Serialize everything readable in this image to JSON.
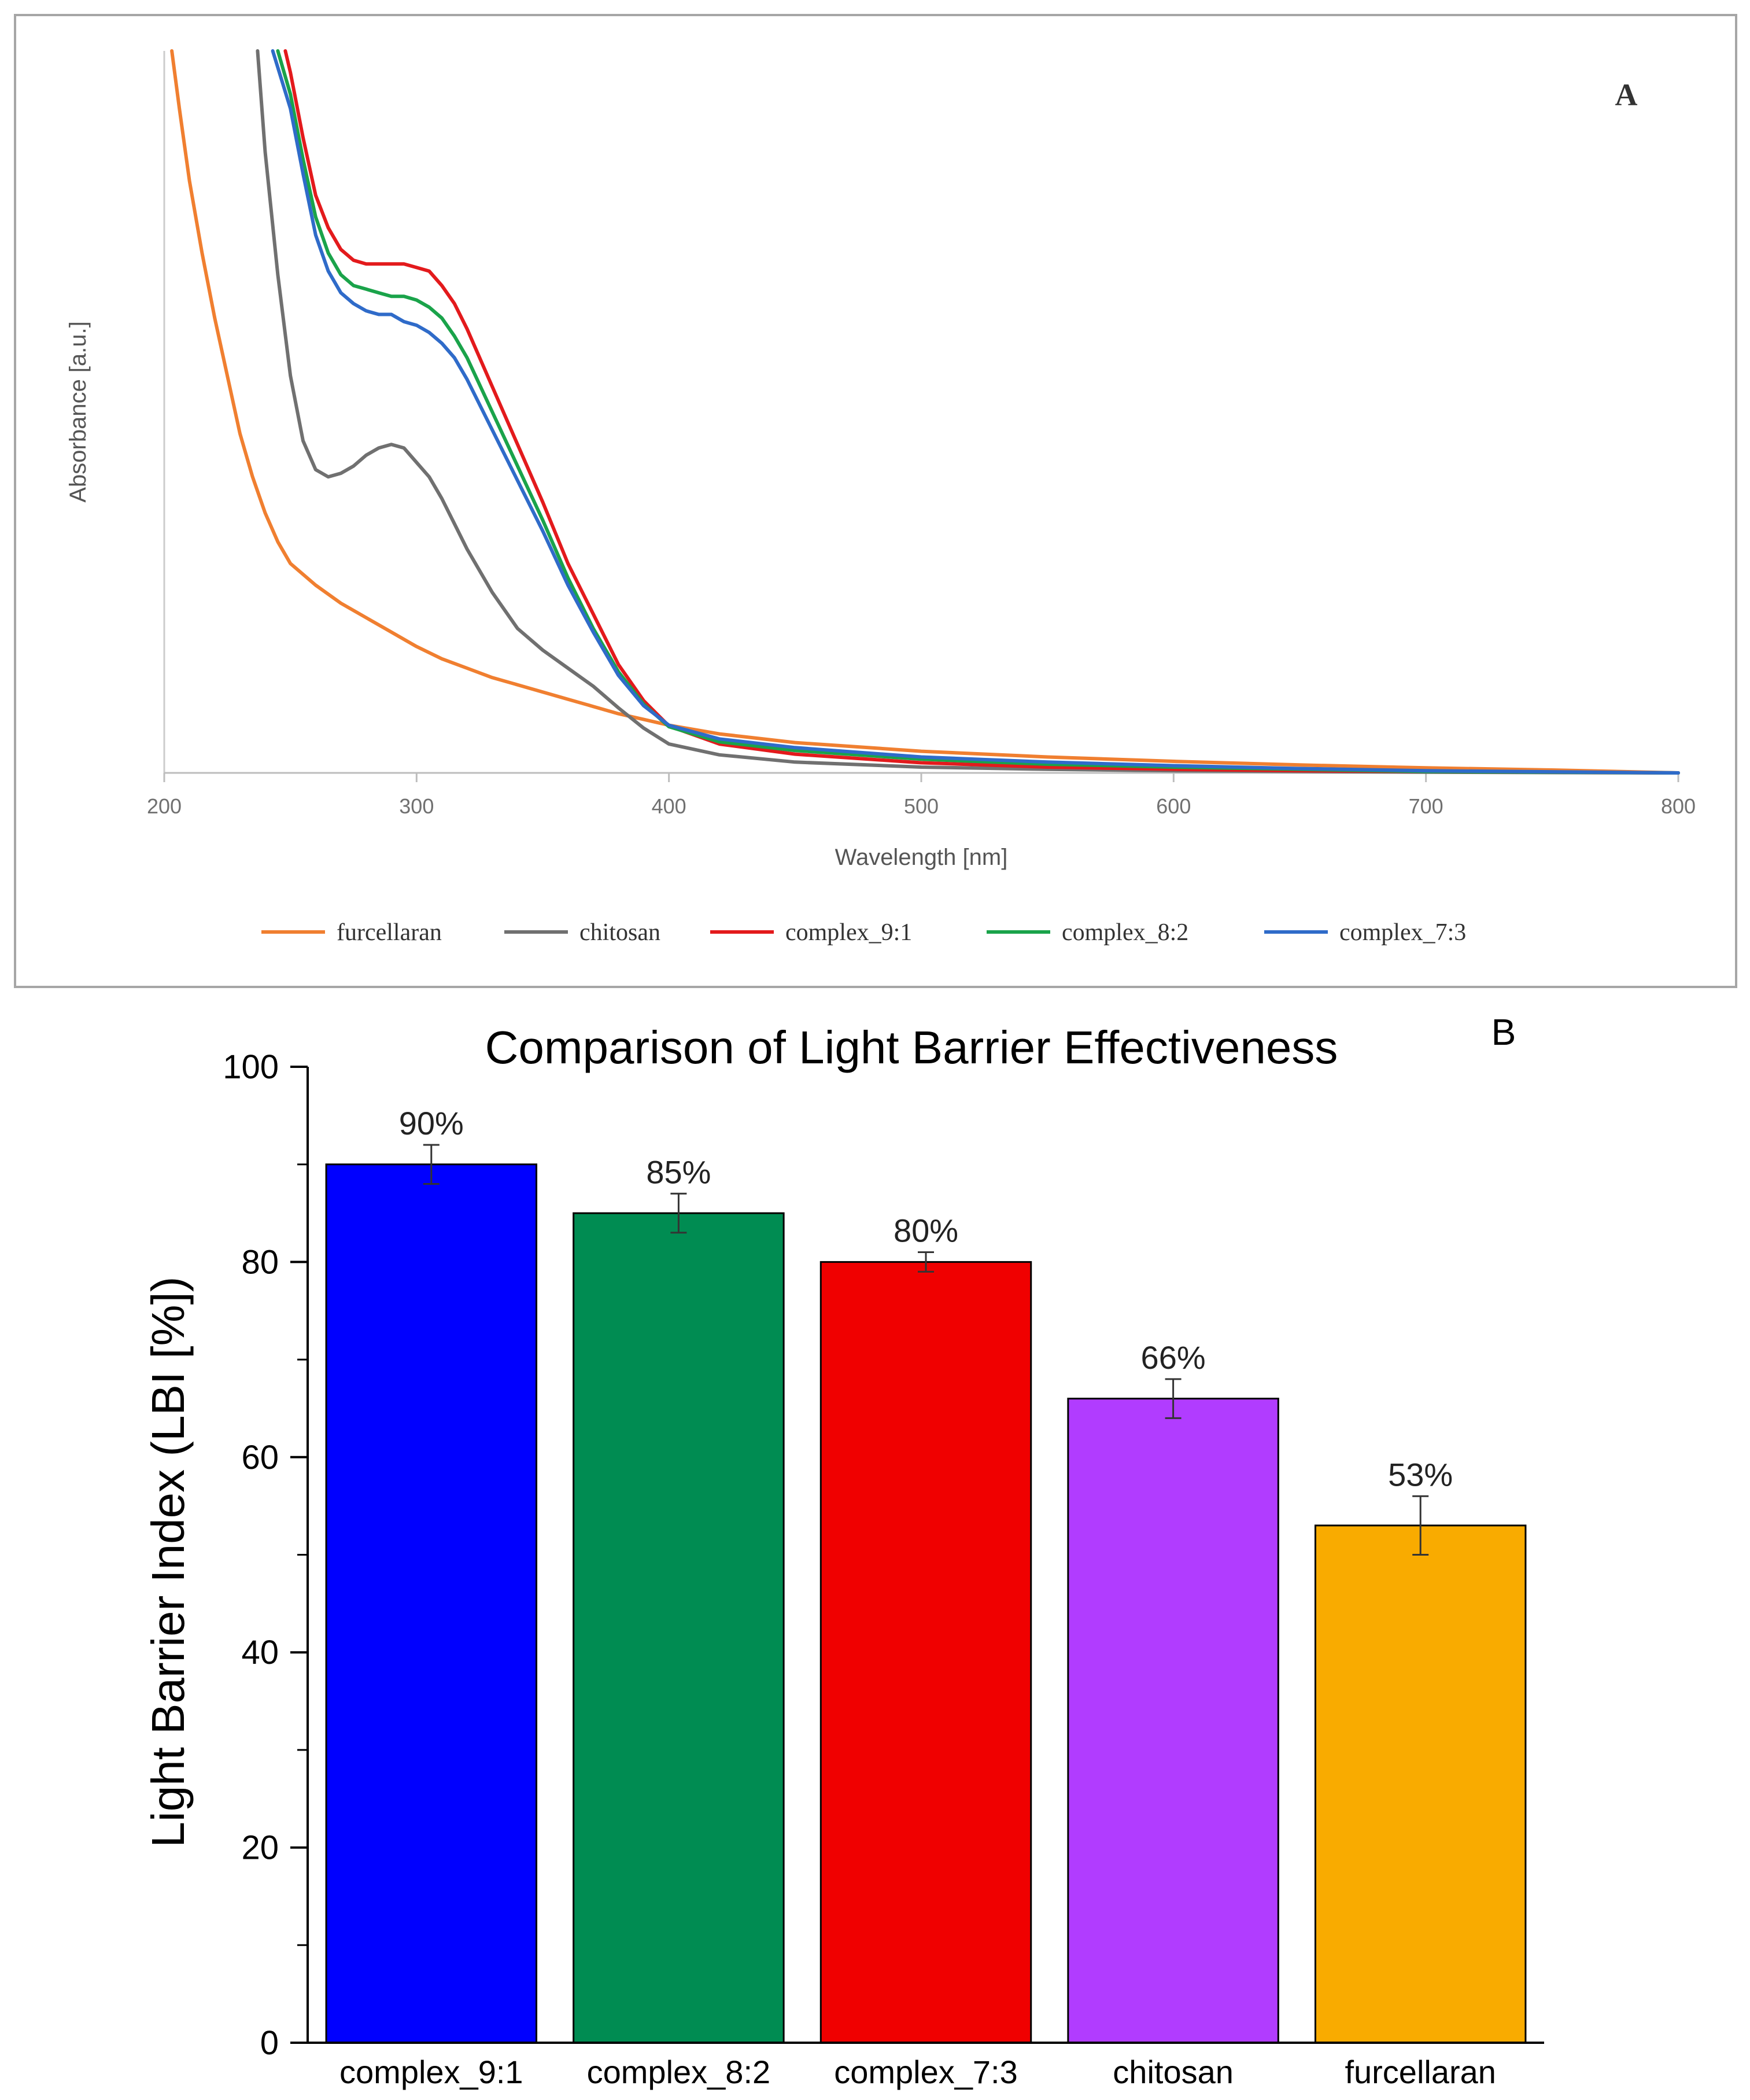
{
  "chart_data": [
    {
      "type": "line",
      "panel_label": "A",
      "title": "",
      "xlabel": "Wavelength [nm]",
      "ylabel": "Absorbance [a.u.]",
      "xlim": [
        200,
        800
      ],
      "x_ticks": [
        "200",
        "300",
        "400",
        "500",
        "600",
        "700",
        "800"
      ],
      "y_scale": "relative (no tick labels)",
      "ylim": [
        0,
        1.0
      ],
      "legend_position": "bottom",
      "grid": false,
      "series": [
        {
          "name": "furcellaran",
          "color": "#f07f30",
          "x": [
            203,
            206,
            210,
            215,
            220,
            225,
            230,
            235,
            240,
            245,
            250,
            260,
            270,
            280,
            290,
            300,
            310,
            320,
            330,
            340,
            350,
            360,
            370,
            380,
            390,
            400,
            420,
            450,
            500,
            550,
            600,
            650,
            700,
            750,
            800
          ],
          "y": [
            1.0,
            0.92,
            0.82,
            0.72,
            0.63,
            0.55,
            0.47,
            0.41,
            0.36,
            0.32,
            0.29,
            0.26,
            0.235,
            0.215,
            0.195,
            0.175,
            0.158,
            0.145,
            0.132,
            0.122,
            0.112,
            0.102,
            0.092,
            0.082,
            0.074,
            0.066,
            0.054,
            0.042,
            0.03,
            0.022,
            0.016,
            0.011,
            0.007,
            0.004,
            0.0
          ]
        },
        {
          "name": "chitosan",
          "color": "#707070",
          "x": [
            237,
            240,
            245,
            250,
            255,
            260,
            265,
            270,
            275,
            280,
            285,
            290,
            295,
            300,
            305,
            310,
            315,
            320,
            330,
            340,
            350,
            360,
            370,
            380,
            390,
            400,
            420,
            450,
            500,
            550,
            600,
            700,
            800
          ],
          "y": [
            1.0,
            0.86,
            0.69,
            0.55,
            0.46,
            0.42,
            0.41,
            0.415,
            0.425,
            0.44,
            0.45,
            0.455,
            0.45,
            0.43,
            0.41,
            0.38,
            0.345,
            0.31,
            0.25,
            0.2,
            0.17,
            0.145,
            0.12,
            0.09,
            0.062,
            0.04,
            0.025,
            0.015,
            0.008,
            0.005,
            0.003,
            0.001,
            0.0
          ]
        },
        {
          "name": "complex_9:1",
          "color": "#e31a1c",
          "x": [
            248,
            250,
            255,
            260,
            265,
            270,
            275,
            280,
            285,
            290,
            295,
            300,
            305,
            310,
            315,
            320,
            330,
            340,
            350,
            360,
            370,
            380,
            390,
            400,
            420,
            450,
            500,
            550,
            600,
            650,
            700,
            800
          ],
          "y": [
            1.0,
            0.97,
            0.88,
            0.8,
            0.755,
            0.725,
            0.71,
            0.705,
            0.705,
            0.705,
            0.705,
            0.7,
            0.695,
            0.675,
            0.65,
            0.615,
            0.535,
            0.455,
            0.375,
            0.29,
            0.22,
            0.15,
            0.1,
            0.065,
            0.04,
            0.026,
            0.014,
            0.008,
            0.005,
            0.003,
            0.002,
            0.0
          ]
        },
        {
          "name": "complex_8:2",
          "color": "#1aa34a",
          "x": [
            245,
            250,
            255,
            260,
            265,
            270,
            275,
            280,
            285,
            290,
            295,
            300,
            305,
            310,
            315,
            320,
            330,
            340,
            350,
            360,
            370,
            380,
            390,
            400,
            420,
            450,
            500,
            550,
            600,
            650,
            700,
            800
          ],
          "y": [
            1.0,
            0.94,
            0.85,
            0.77,
            0.72,
            0.69,
            0.675,
            0.67,
            0.665,
            0.66,
            0.66,
            0.655,
            0.645,
            0.63,
            0.605,
            0.575,
            0.5,
            0.425,
            0.35,
            0.27,
            0.2,
            0.14,
            0.095,
            0.064,
            0.043,
            0.031,
            0.019,
            0.012,
            0.008,
            0.005,
            0.002,
            0.0
          ]
        },
        {
          "name": "complex_7:3",
          "color": "#2f6bc9",
          "x": [
            243,
            250,
            255,
            260,
            265,
            270,
            275,
            280,
            285,
            290,
            295,
            300,
            305,
            310,
            315,
            320,
            330,
            340,
            350,
            360,
            370,
            380,
            390,
            400,
            420,
            450,
            500,
            550,
            600,
            650,
            700,
            800
          ],
          "y": [
            1.0,
            0.92,
            0.83,
            0.745,
            0.695,
            0.665,
            0.65,
            0.64,
            0.635,
            0.635,
            0.625,
            0.62,
            0.61,
            0.595,
            0.575,
            0.545,
            0.475,
            0.405,
            0.335,
            0.26,
            0.195,
            0.135,
            0.093,
            0.066,
            0.047,
            0.035,
            0.022,
            0.015,
            0.01,
            0.006,
            0.003,
            0.0
          ]
        }
      ]
    },
    {
      "type": "bar",
      "panel_label": "B",
      "title": "Comparison of Light Barrier Effectiveness",
      "xlabel": "",
      "ylabel": "Light Barrier Index (LBI [%])",
      "ylim": [
        0,
        100
      ],
      "y_ticks": [
        "0",
        "20",
        "40",
        "60",
        "80",
        "100"
      ],
      "categories": [
        "complex_9:1",
        "complex_8:2",
        "complex_7:3",
        "chitosan",
        "furcellaran"
      ],
      "values": [
        90,
        85,
        80,
        66,
        53
      ],
      "errors": [
        2,
        2,
        1,
        2,
        3
      ],
      "data_labels": [
        "90%",
        "85%",
        "80%",
        "66%",
        "53%"
      ],
      "colors": [
        "#0000ff",
        "#008c52",
        "#f00000",
        "#b13cff",
        "#f9ab00"
      ],
      "legend_position": "none",
      "grid": false
    }
  ]
}
